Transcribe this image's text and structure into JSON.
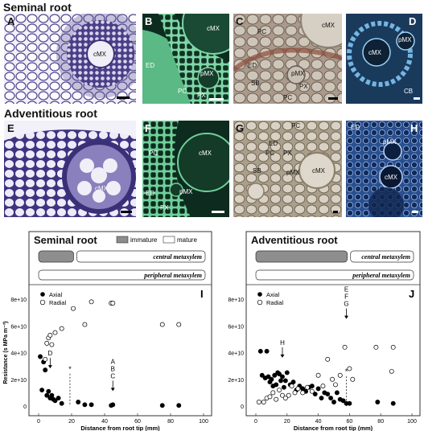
{
  "sections": {
    "seminal_title": "Seminal root",
    "adventitious_title": "Adventitious root"
  },
  "panels": {
    "A": {
      "letter": "A",
      "labels": [
        "cMX"
      ]
    },
    "B": {
      "letter": "B",
      "labels": [
        "cMX",
        "ED",
        "pMX",
        "PC",
        "PX"
      ]
    },
    "C": {
      "letter": "C",
      "labels": [
        "cMX",
        "PC",
        "ED",
        "pMX",
        "SB",
        "PX",
        "PC"
      ]
    },
    "D": {
      "letter": "D",
      "labels": [
        "pMX",
        "cMX",
        "CB"
      ]
    },
    "E": {
      "letter": "E",
      "labels": [
        "cMX"
      ]
    },
    "F": {
      "letter": "F",
      "labels": [
        "PC",
        "cMX",
        "ED",
        "pMX",
        "PX"
      ]
    },
    "G": {
      "letter": "G",
      "labels": [
        "PC",
        "ED",
        "PC",
        "PX",
        "SB",
        "pMX",
        "cMX"
      ]
    },
    "H": {
      "letter": "H",
      "labels": [
        "ED",
        "pMX",
        "cMX"
      ]
    }
  },
  "chart_data": [
    {
      "type": "scatter",
      "panel_letter": "I",
      "title": "Seminal root",
      "legend_bar": {
        "immature": "immature",
        "mature": "mature"
      },
      "bars": {
        "central": "central metaxylem",
        "peripheral": "peripheral metaxylem"
      },
      "xlabel": "Distance from root tip (mm)",
      "ylabel": "Resistance (s MPa m⁻³)",
      "xlim": [
        0,
        100
      ],
      "ylim": [
        0,
        80000000000.0
      ],
      "xticks": [
        "0",
        "20",
        "40",
        "60",
        "80",
        "100"
      ],
      "yticks": [
        "0",
        "2e+10",
        "4e+10",
        "6e+10",
        "8e+10"
      ],
      "legend": {
        "axial": "Axial",
        "radial": "Radial"
      },
      "series": [
        {
          "name": "Axial",
          "marker": "filled",
          "x": [
            1,
            2,
            3,
            4,
            5,
            6,
            7,
            8,
            9,
            10,
            12,
            14,
            24,
            28,
            32,
            44,
            45,
            75,
            85
          ],
          "y": [
            37000000000.0,
            12000000000.0,
            33000000000.0,
            27000000000.0,
            8000000000.0,
            11000000000.0,
            6000000000.0,
            8000000000.0,
            5000000000.0,
            4000000000.0,
            6000000000.0,
            2000000000.0,
            3000000000.0,
            1000000000.0,
            1000000000.0,
            500000000.0,
            1000000000.0,
            500000000.0,
            500000000.0
          ]
        },
        {
          "name": "Radial",
          "marker": "open",
          "x": [
            4,
            5,
            6,
            7,
            8,
            10,
            14,
            21,
            28,
            32,
            44,
            45,
            75,
            85
          ],
          "y": [
            35000000000.0,
            47000000000.0,
            51000000000.0,
            53000000000.0,
            46000000000.0,
            55000000000.0,
            58000000000.0,
            73000000000.0,
            61000000000.0,
            78000000000.0,
            77000000000.0,
            77000000000.0,
            61000000000.0,
            61000000000.0
          ]
        }
      ],
      "annotations": [
        {
          "text": "D",
          "x": 7,
          "y": 33000000000.0
        },
        {
          "text": "A",
          "x": 45,
          "y": 16000000000.0
        },
        {
          "text": "B",
          "x": 45,
          "y": 16000000000.0
        },
        {
          "text": "C",
          "x": 45,
          "y": 16000000000.0
        },
        {
          "text": "*",
          "x": 19,
          "y": 26000000000.0
        }
      ]
    },
    {
      "type": "scatter",
      "panel_letter": "J",
      "title": "Adventitious root",
      "bars": {
        "central": "central metaxylem",
        "peripheral": "peripheral metaxylem"
      },
      "xlabel": "Distance from root tip (mm)",
      "xlim": [
        0,
        100
      ],
      "ylim": [
        0,
        80000000000.0
      ],
      "xticks": [
        "0",
        "20",
        "40",
        "60",
        "80",
        "100"
      ],
      "yticks": [
        "0",
        "2e+10",
        "4e+10",
        "6e+10",
        "8e+10"
      ],
      "legend": {
        "axial": "Axial",
        "radial": "Radial"
      },
      "series": [
        {
          "name": "Axial",
          "marker": "filled",
          "x": [
            3,
            4,
            6,
            7,
            8,
            9,
            10,
            11,
            12,
            13,
            14,
            15,
            16,
            17,
            18,
            19,
            20,
            22,
            24,
            26,
            28,
            30,
            32,
            34,
            36,
            38,
            40,
            42,
            44,
            46,
            48,
            50,
            52,
            54,
            56,
            58,
            60,
            78,
            88
          ],
          "y": [
            41000000000.0,
            23000000000.0,
            21000000000.0,
            41000000000.0,
            22000000000.0,
            18000000000.0,
            20000000000.0,
            15000000000.0,
            23000000000.0,
            16000000000.0,
            25000000000.0,
            24000000000.0,
            19000000000.0,
            22000000000.0,
            14000000000.0,
            19000000000.0,
            25000000000.0,
            16000000000.0,
            18000000000.0,
            12000000000.0,
            15000000000.0,
            13000000000.0,
            11000000000.0,
            14000000000.0,
            15000000000.0,
            9000000000.0,
            13000000000.0,
            6000000000.0,
            10000000000.0,
            9000000000.0,
            6000000000.0,
            3000000000.0,
            10000000000.0,
            5000000000.0,
            4000000000.0,
            2000000000.0,
            2000000000.0,
            3000000000.0,
            2000000000.0
          ]
        },
        {
          "name": "Radial",
          "marker": "open",
          "x": [
            2,
            5,
            7,
            9,
            11,
            13,
            15,
            17,
            19,
            21,
            23,
            25,
            27,
            30,
            33,
            36,
            40,
            43,
            46,
            49,
            51,
            54,
            57,
            60,
            62,
            77,
            87,
            88
          ],
          "y": [
            3000000000.0,
            3000000000.0,
            6000000000.0,
            7000000000.0,
            10000000000.0,
            5000000000.0,
            12000000000.0,
            8000000000.0,
            6000000000.0,
            8000000000.0,
            15000000000.0,
            10000000000.0,
            13000000000.0,
            10000000000.0,
            14000000000.0,
            11000000000.0,
            23000000000.0,
            15000000000.0,
            35000000000.0,
            20000000000.0,
            16000000000.0,
            23000000000.0,
            44000000000.0,
            28000000000.0,
            20000000000.0,
            44000000000.0,
            26000000000.0,
            44000000000.0
          ]
        }
      ],
      "annotations": [
        {
          "text": "H",
          "x": 17,
          "y": 41000000000.0
        },
        {
          "text": "E",
          "x": 58,
          "y": 70000000000.0
        },
        {
          "text": "F",
          "x": 58,
          "y": 70000000000.0
        },
        {
          "text": "G",
          "x": 58,
          "y": 70000000000.0
        },
        {
          "text": "*",
          "x": 58,
          "y": 24000000000.0
        }
      ]
    }
  ]
}
